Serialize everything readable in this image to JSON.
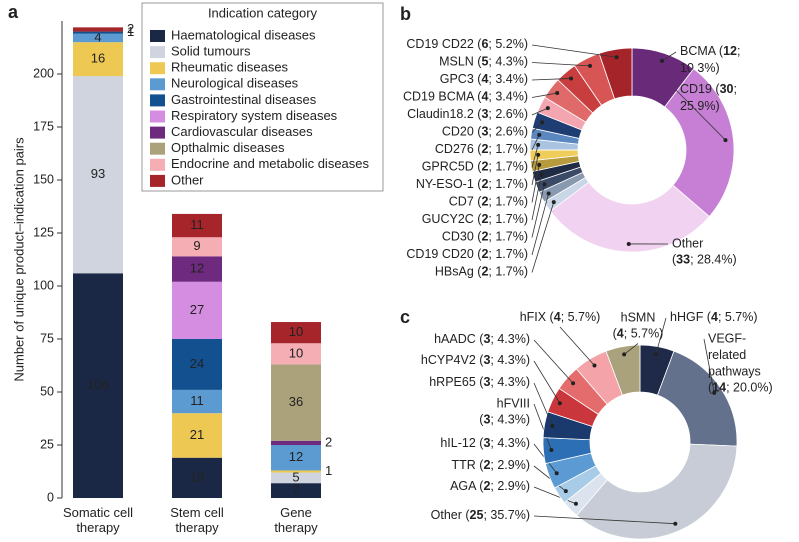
{
  "chart_data": [
    {
      "type": "bar",
      "stacked": true,
      "panel": "a",
      "ylabel": "Number of unique product–indication pairs",
      "categories": [
        "Somatic cell therapy",
        "Stem cell therapy",
        "Gene therapy"
      ],
      "ylim": [
        0,
        225
      ],
      "yticks": [
        0,
        25,
        50,
        75,
        100,
        125,
        150,
        175,
        200
      ],
      "legend_title": "Indication category",
      "legend": "top-right",
      "series": [
        {
          "name": "Haematological diseases",
          "color": "#1b2845",
          "values": [
            106,
            19,
            7
          ]
        },
        {
          "name": "Solid tumours",
          "color": "#cfd4de",
          "values": [
            93,
            null,
            5
          ]
        },
        {
          "name": "Rheumatic diseases",
          "color": "#edc953",
          "values": [
            16,
            21,
            1
          ]
        },
        {
          "name": "Neurological diseases",
          "color": "#5c9bd1",
          "values": [
            4,
            11,
            12
          ]
        },
        {
          "name": "Gastrointestinal diseases",
          "color": "#12508f",
          "values": [
            1,
            24,
            null
          ]
        },
        {
          "name": "Respiratory system diseases",
          "color": "#d48de0",
          "values": [
            null,
            27,
            null
          ]
        },
        {
          "name": "Cardiovascular diseases",
          "color": "#6e2a7e",
          "values": [
            null,
            12,
            2
          ]
        },
        {
          "name": "Opthalmic diseases",
          "color": "#aba27c",
          "values": [
            null,
            null,
            36
          ]
        },
        {
          "name": "Endocrine and metabolic diseases",
          "color": "#f5aeb3",
          "values": [
            null,
            9,
            10
          ]
        },
        {
          "name": "Other",
          "color": "#a5252b",
          "values": [
            2,
            11,
            10
          ]
        }
      ]
    },
    {
      "type": "donut",
      "panel": "b",
      "labels": [
        [
          "BCMA (12;",
          "10.3%)"
        ],
        [
          "CD19 (30;",
          "25.9%)"
        ],
        [
          "Other",
          "(33; 28.4%)"
        ],
        [
          "HBsAg (2; 1.7%)"
        ],
        [
          "CD19 CD20 (2; 1.7%)"
        ],
        [
          "CD30 (2; 1.7%)"
        ],
        [
          "GUCY2C (2; 1.7%)"
        ],
        [
          "CD7 (2; 1.7%)"
        ],
        [
          "NY-ESO-1 (2; 1.7%)"
        ],
        [
          "GPRC5D (2; 1.7%)"
        ],
        [
          "CD276 (2; 1.7%)"
        ],
        [
          "CD20 (3; 2.6%)"
        ],
        [
          "Claudin18.2 (3; 2.6%)"
        ],
        [
          "CD19 BCMA (4; 3.4%)"
        ],
        [
          "GPC3 (4; 3.4%)"
        ],
        [
          "MSLN (5; 4.3%)"
        ],
        [
          "CD19 CD22 (6; 5.2%)"
        ]
      ],
      "counts": [
        12,
        30,
        33,
        2,
        2,
        2,
        2,
        2,
        2,
        2,
        2,
        3,
        3,
        4,
        4,
        5,
        6
      ],
      "values": [
        10.3,
        25.9,
        28.4,
        1.7,
        1.7,
        1.7,
        1.7,
        1.7,
        1.7,
        1.7,
        1.7,
        2.6,
        2.6,
        3.4,
        3.4,
        4.3,
        5.2
      ],
      "colors": [
        "#6a2a7a",
        "#c77fd6",
        "#f1d2f0",
        "#c9d6e6",
        "#8899b0",
        "#3b4a66",
        "#1f2a44",
        "#b79a3b",
        "#f0cd5a",
        "#a9c3e0",
        "#5a87c0",
        "#1d3d73",
        "#f4a6b0",
        "#e06a6a",
        "#c83d3d",
        "#d85555",
        "#a5242a"
      ]
    },
    {
      "type": "donut",
      "panel": "c",
      "labels": [
        [
          "hHGF (4; 5.7%)"
        ],
        [
          "VEGF-",
          "related",
          "pathways",
          "(14; 20.0%)"
        ],
        [
          "Other (25; 35.7%)"
        ],
        [
          "AGA (2; 2.9%)"
        ],
        [
          "TTR (2; 2.9%)"
        ],
        [
          "hIL-12 (3; 4.3%)"
        ],
        [
          "hFVIII",
          "(3; 4.3%)"
        ],
        [
          "hRPE65 (3; 4.3%)"
        ],
        [
          "hCYP4V2 (3; 4.3%)"
        ],
        [
          "hAADC (3; 4.3%)"
        ],
        [
          "hFIX (4; 5.7%)"
        ],
        [
          "hSMN",
          "(4; 5.7%)"
        ]
      ],
      "counts": [
        4,
        14,
        25,
        2,
        2,
        3,
        3,
        3,
        3,
        3,
        4,
        4
      ],
      "values": [
        5.7,
        20.0,
        35.7,
        2.9,
        2.9,
        4.3,
        4.3,
        4.3,
        4.3,
        4.3,
        5.7,
        5.7
      ],
      "colors": [
        "#1e2a47",
        "#64718c",
        "#c8ccd6",
        "#dbe4ee",
        "#a8cbe8",
        "#5b9ad2",
        "#2c6fb5",
        "#1a3a6e",
        "#c9363b",
        "#e56c6c",
        "#f4a3a8",
        "#aaa17d"
      ]
    }
  ]
}
